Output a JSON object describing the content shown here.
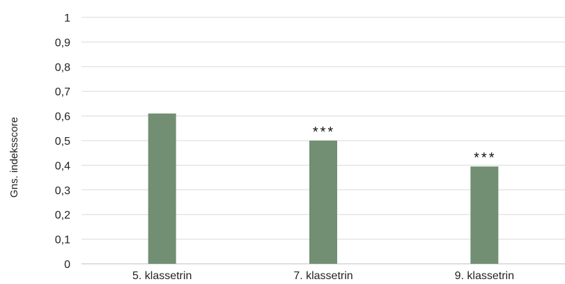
{
  "chart_data": {
    "type": "bar",
    "categories": [
      "5. klassetrin",
      "7. klassetrin",
      "9. klassetrin"
    ],
    "values": [
      0.61,
      0.5,
      0.395
    ],
    "annotations": [
      "",
      "***",
      "***"
    ],
    "ylabel": "Gns. indeksscore",
    "xlabel": "",
    "ylim": [
      0,
      1
    ],
    "yticks": [
      "0",
      "0,1",
      "0,2",
      "0,3",
      "0,4",
      "0,5",
      "0,6",
      "0,7",
      "0,8",
      "0,9",
      "1"
    ],
    "grid": true,
    "bar_color": "#728f74",
    "grid_color": "#d9d9d9"
  }
}
